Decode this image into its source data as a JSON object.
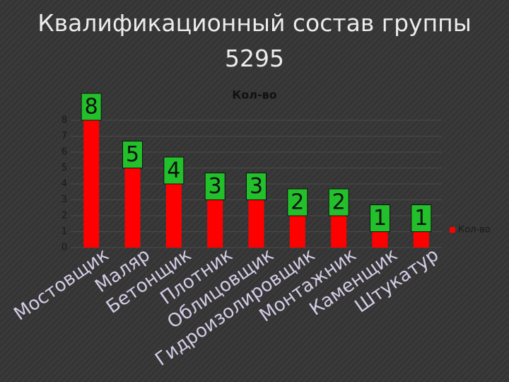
{
  "slide_title": "Квалификационный состав группы 5295",
  "chart_data": {
    "type": "bar",
    "title": "Кол-во",
    "categories": [
      "Мостовщик",
      "Маляр",
      "Бетонщик",
      "Плотник",
      "Облицовщик",
      "Гидроизолировщик",
      "Монтажник",
      "Каменщик",
      "Штукатур"
    ],
    "series": [
      {
        "name": "Кол-во",
        "color": "#ff0000",
        "values": [
          8,
          5,
          4,
          3,
          3,
          2,
          2,
          1,
          1
        ]
      }
    ],
    "ylim": [
      0,
      8
    ],
    "yticks": [
      0,
      1,
      2,
      3,
      4,
      5,
      6,
      7,
      8
    ],
    "grid": true,
    "legend": "right",
    "label_box_color": "#22c02a"
  }
}
